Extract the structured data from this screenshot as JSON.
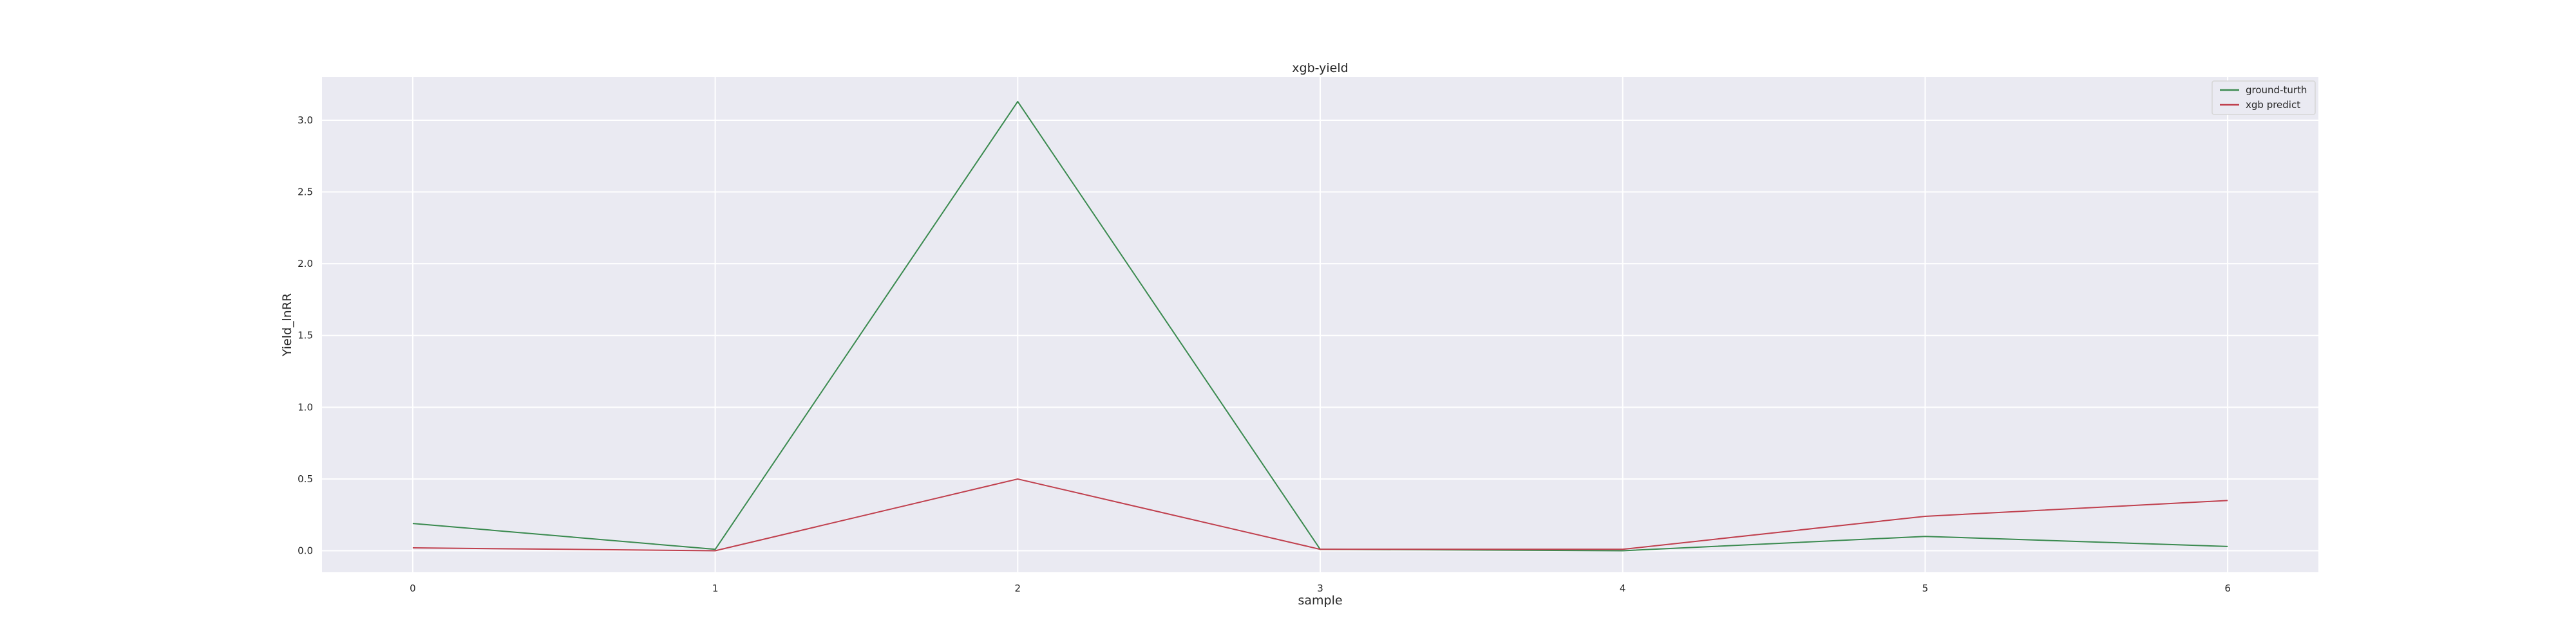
{
  "chart_data": {
    "type": "line",
    "title": "xgb-yield",
    "xlabel": "sample",
    "ylabel": "Yield_lnRR",
    "x": [
      0,
      1,
      2,
      3,
      4,
      5,
      6
    ],
    "xticks": [
      "0",
      "1",
      "2",
      "3",
      "4",
      "5",
      "6"
    ],
    "yticks": [
      "0.0",
      "0.5",
      "1.0",
      "1.5",
      "2.0",
      "2.5",
      "3.0"
    ],
    "xlim": [
      -0.3,
      6.3
    ],
    "ylim": [
      -0.15,
      3.3
    ],
    "grid": true,
    "legend_position": "top-right",
    "series": [
      {
        "name": "ground-turth",
        "color": "#3a8a4f",
        "values": [
          0.19,
          0.01,
          3.13,
          0.01,
          0.0,
          0.1,
          0.03
        ]
      },
      {
        "name": "xgb predict",
        "color": "#c0404e",
        "values": [
          0.02,
          0.0,
          0.5,
          0.01,
          0.01,
          0.24,
          0.35
        ]
      }
    ]
  }
}
